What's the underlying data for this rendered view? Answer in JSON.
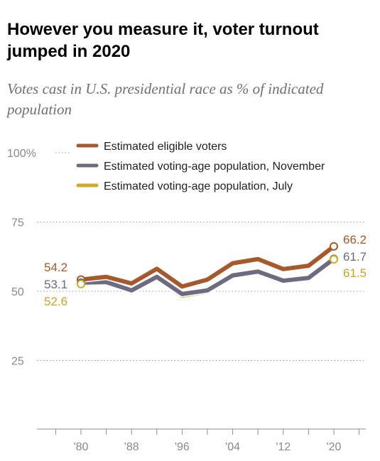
{
  "chart_data": {
    "type": "line",
    "title": "However you measure it, voter turnout jumped in 2020",
    "subtitle": "Votes cast in U.S. presidential race as % of indicated population",
    "x": [
      1980,
      1984,
      1988,
      1992,
      1996,
      2000,
      2004,
      2008,
      2012,
      2016,
      2020
    ],
    "x_tick_labels": [
      "'80",
      "'88",
      "'96",
      "'04",
      "'12",
      "'20"
    ],
    "x_tick_values": [
      1980,
      1988,
      1996,
      2004,
      2012,
      2020
    ],
    "y_ticks": [
      {
        "value": 100,
        "label": "100%"
      },
      {
        "value": 75,
        "label": "75"
      },
      {
        "value": 50,
        "label": "50"
      },
      {
        "value": 25,
        "label": "25"
      }
    ],
    "ylim": [
      0,
      100
    ],
    "grid": "dotted horizontal",
    "legend_position": "top",
    "series": [
      {
        "name": "Estimated eligible voters",
        "color": "#a8582a",
        "values": [
          54.2,
          55.2,
          52.8,
          58.1,
          51.7,
          54.2,
          60.1,
          61.6,
          58.0,
          59.2,
          66.2
        ],
        "end_labels": {
          "start": "54.2",
          "end": "66.2"
        },
        "label_color": "#a8582a"
      },
      {
        "name": "Estimated voting-age population, November",
        "color": "#6e6a80",
        "values": [
          53.1,
          53.3,
          50.3,
          55.2,
          49.0,
          50.3,
          55.7,
          57.1,
          53.8,
          54.8,
          61.7
        ],
        "end_labels": {
          "start": "53.1",
          "end": "61.7"
        },
        "label_color": "#6e6a80"
      },
      {
        "name": "Estimated voting-age population, July",
        "color": "#d2ac28",
        "values": [
          52.6,
          53.0,
          50.1,
          55.0,
          48.4,
          49.9,
          55.3,
          56.9,
          53.6,
          54.6,
          61.5
        ],
        "end_labels": {
          "start": "52.6",
          "end": "61.5"
        },
        "label_color": "#c9a227"
      }
    ]
  }
}
